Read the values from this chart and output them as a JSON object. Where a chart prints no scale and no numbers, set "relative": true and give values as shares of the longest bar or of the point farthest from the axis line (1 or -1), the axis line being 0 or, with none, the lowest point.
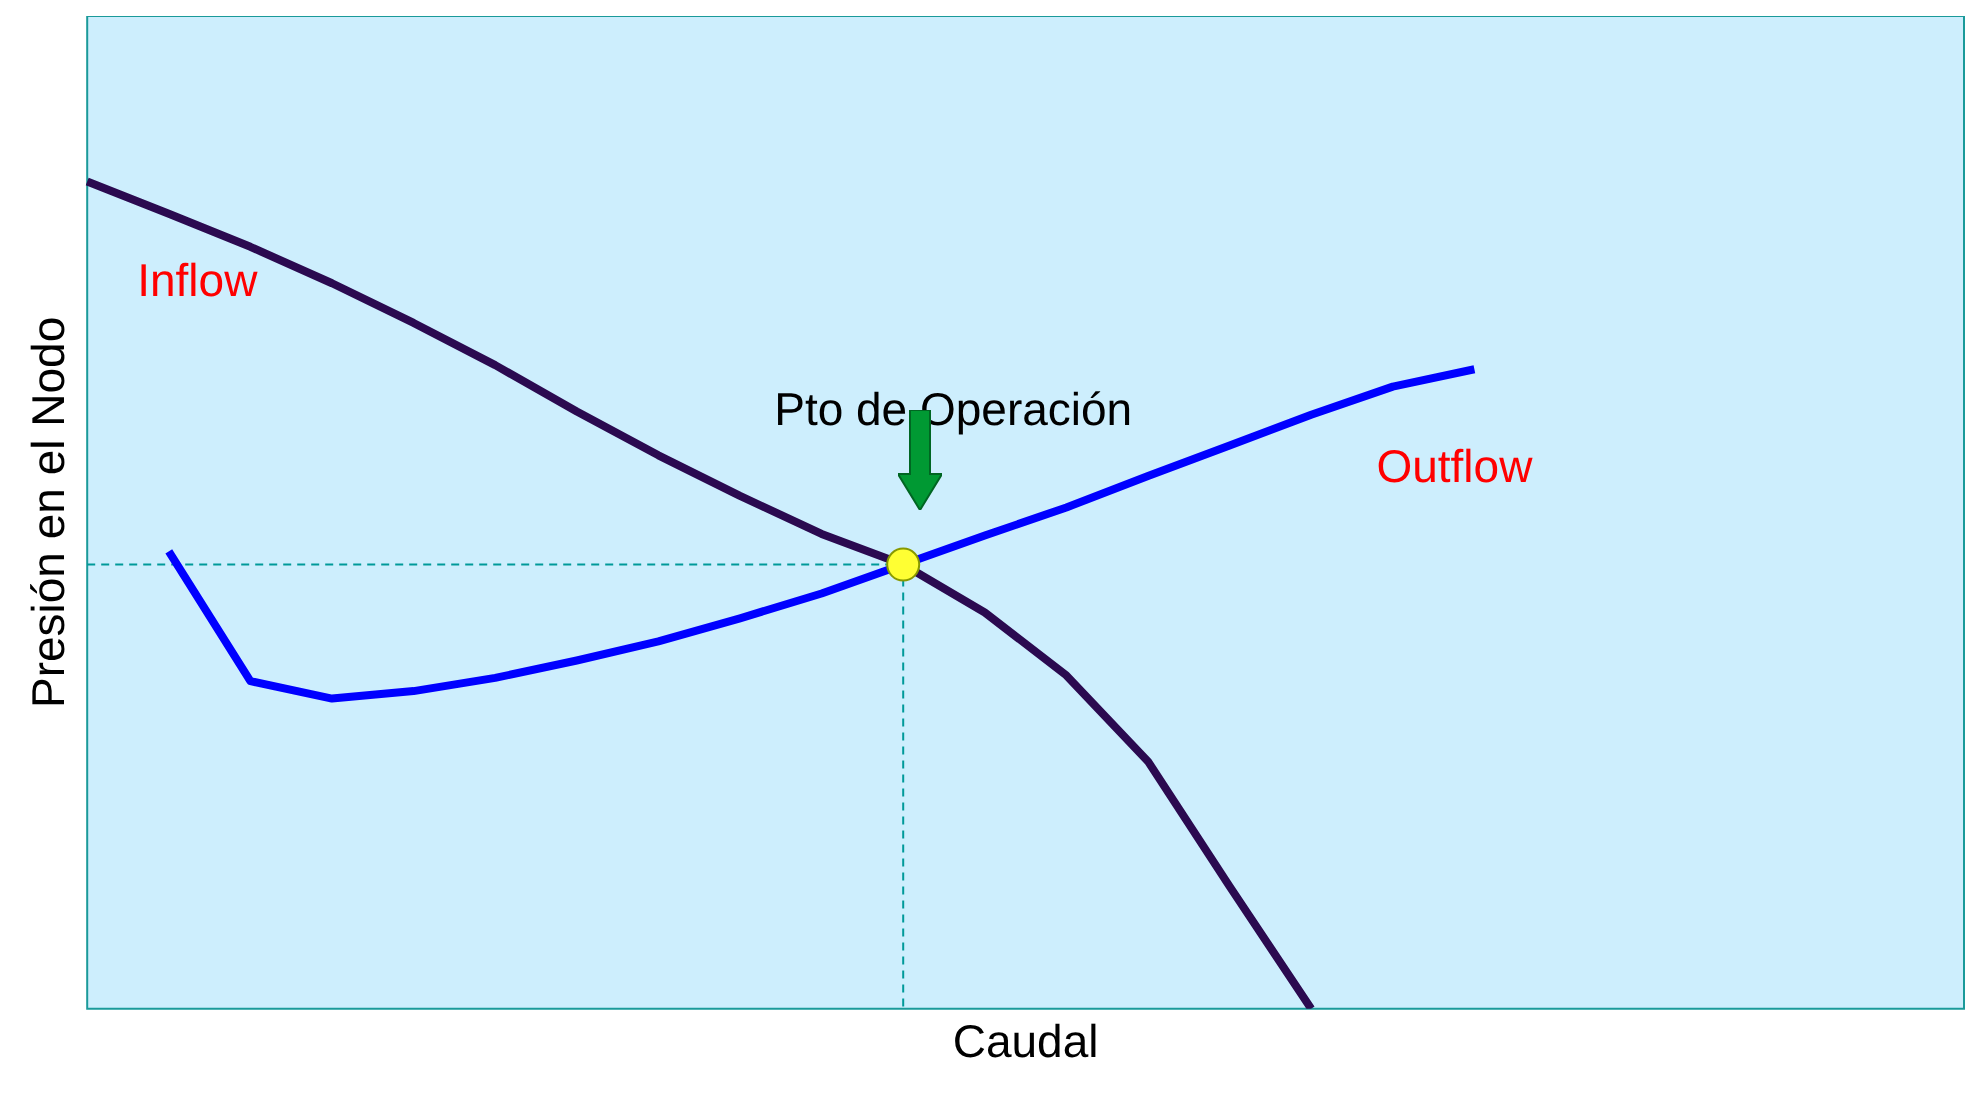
{
  "chart_data": {
    "type": "line",
    "relative": true,
    "xlabel": "Caudal",
    "ylabel": "Presión en el Nodo",
    "tick_labels": false,
    "grid": false,
    "legend": false,
    "marker": "none",
    "line_style": "solid",
    "categories": [
      null,
      null,
      null,
      null,
      null,
      null,
      null,
      null,
      null,
      null,
      null,
      null,
      null,
      null,
      null,
      null,
      null,
      null,
      null,
      null,
      null,
      null,
      null,
      null
    ],
    "series": [
      {
        "name": "Inflow",
        "color": "#2b0a50",
        "values": [
          1,
          0.961,
          0.921,
          0.877,
          0.829,
          0.778,
          0.722,
          0.669,
          0.62,
          0.574,
          0.537,
          0.479,
          0.403,
          0.299,
          0.148,
          0,
          null,
          null,
          null,
          null,
          null,
          null,
          null,
          null
        ]
      },
      {
        "name": "Outflow",
        "color": "#0000ff",
        "values": [
          null,
          0.553,
          0.396,
          0.375,
          0.384,
          0.4,
          0.421,
          0.444,
          0.472,
          0.502,
          0.537,
          0.572,
          0.606,
          0.644,
          0.681,
          0.718,
          0.752,
          0.773,
          null,
          null,
          null,
          null,
          null,
          null
        ]
      }
    ],
    "ref_lines": [
      {
        "axis": "y",
        "value": 0.537,
        "color": "#009999",
        "line_style": "dashed"
      }
    ],
    "annotations": [
      "Pto de Operación"
    ]
  }
}
